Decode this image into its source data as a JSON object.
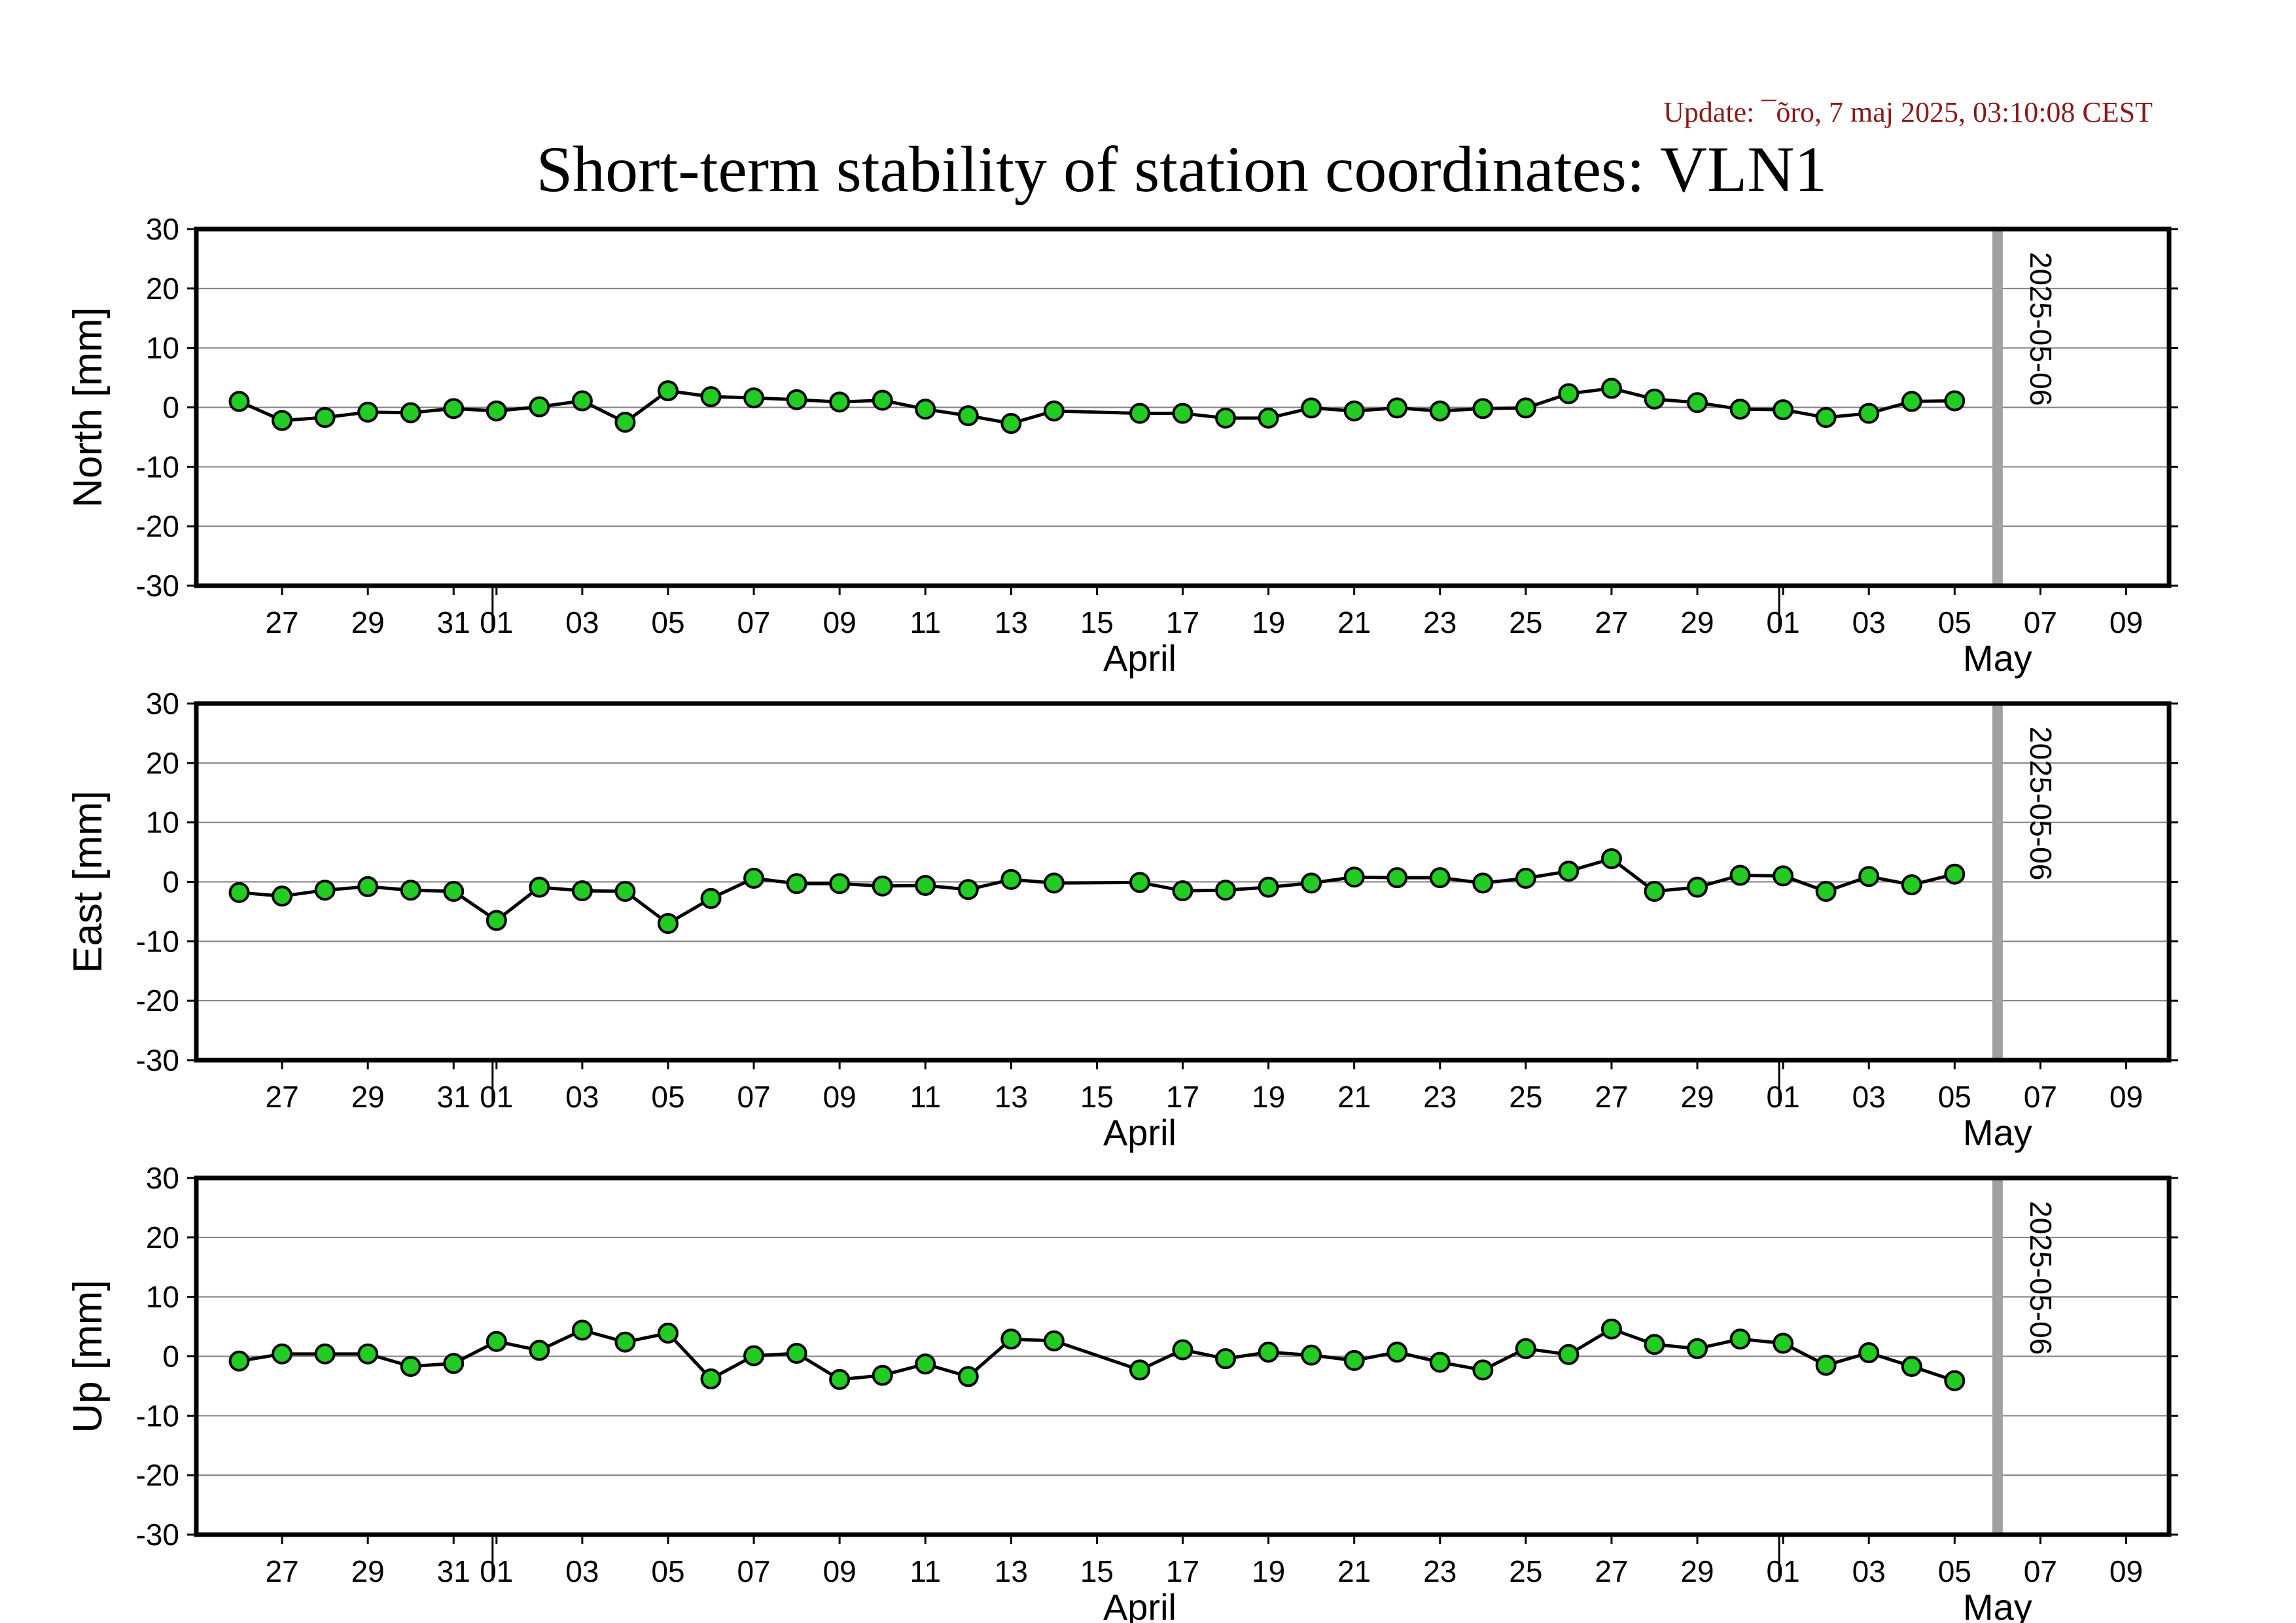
{
  "update_text": "Update: ¯õro, 7 maj 2025, 03:10:08 CEST",
  "title": "Short-term stability of station coordinates: VLN1",
  "colors": {
    "point": "#22cc22",
    "line": "#000000",
    "marker_line": "#a0a0a0",
    "grid": "#808080",
    "update": "#8b1a1a"
  },
  "x_axis": {
    "range": [
      "2025-03-25",
      "2025-05-10"
    ],
    "tick_dates": [
      "2025-03-27",
      "2025-03-29",
      "2025-03-31",
      "2025-04-01",
      "2025-04-03",
      "2025-04-05",
      "2025-04-07",
      "2025-04-09",
      "2025-04-11",
      "2025-04-13",
      "2025-04-15",
      "2025-04-17",
      "2025-04-19",
      "2025-04-21",
      "2025-04-23",
      "2025-04-25",
      "2025-04-27",
      "2025-04-29",
      "2025-05-01",
      "2025-05-03",
      "2025-05-05",
      "2025-05-07",
      "2025-05-09"
    ],
    "tick_labels": [
      "27",
      "29",
      "31",
      "01",
      "03",
      "05",
      "07",
      "09",
      "11",
      "13",
      "15",
      "17",
      "19",
      "21",
      "23",
      "25",
      "27",
      "29",
      "01",
      "03",
      "05",
      "07",
      "09"
    ],
    "month_boundaries": [
      "2025-04-01",
      "2025-05-01"
    ],
    "month_labels": [
      {
        "label": "April",
        "date": "2025-04-16"
      },
      {
        "label": "May",
        "date": "2025-05-06"
      }
    ]
  },
  "marker": {
    "date": "2025-05-06",
    "label": "2025-05-06"
  },
  "chart_data": [
    {
      "type": "line",
      "ylabel": "North [mm]",
      "ylim": [
        -30,
        30
      ],
      "yticks": [
        30,
        20,
        10,
        0,
        -10,
        -20,
        -30
      ],
      "grid": true,
      "x": [
        "2025-03-26",
        "2025-03-27",
        "2025-03-28",
        "2025-03-29",
        "2025-03-30",
        "2025-03-31",
        "2025-04-01",
        "2025-04-02",
        "2025-04-03",
        "2025-04-04",
        "2025-04-05",
        "2025-04-06",
        "2025-04-07",
        "2025-04-08",
        "2025-04-09",
        "2025-04-10",
        "2025-04-11",
        "2025-04-12",
        "2025-04-13",
        "2025-04-14",
        "2025-04-16",
        "2025-04-17",
        "2025-04-18",
        "2025-04-19",
        "2025-04-20",
        "2025-04-21",
        "2025-04-22",
        "2025-04-23",
        "2025-04-24",
        "2025-04-25",
        "2025-04-26",
        "2025-04-27",
        "2025-04-28",
        "2025-04-29",
        "2025-04-30",
        "2025-05-01",
        "2025-05-02",
        "2025-05-03",
        "2025-05-04",
        "2025-05-05"
      ],
      "y": [
        1.0,
        -2.2,
        -1.7,
        -0.8,
        -0.9,
        -0.2,
        -0.6,
        0.1,
        1.1,
        -2.5,
        2.8,
        1.8,
        1.6,
        1.3,
        0.9,
        1.2,
        -0.3,
        -1.4,
        -2.7,
        -0.6,
        -1.0,
        -1.0,
        -1.8,
        -1.8,
        -0.1,
        -0.6,
        -0.1,
        -0.6,
        -0.2,
        -0.1,
        2.3,
        3.2,
        1.4,
        0.8,
        -0.3,
        -0.4,
        -1.7,
        -1.0,
        1.0,
        1.1
      ]
    },
    {
      "type": "line",
      "ylabel": "East [mm]",
      "ylim": [
        -30,
        30
      ],
      "yticks": [
        30,
        20,
        10,
        0,
        -10,
        -20,
        -30
      ],
      "grid": true,
      "x": [
        "2025-03-26",
        "2025-03-27",
        "2025-03-28",
        "2025-03-29",
        "2025-03-30",
        "2025-03-31",
        "2025-04-01",
        "2025-04-02",
        "2025-04-03",
        "2025-04-04",
        "2025-04-05",
        "2025-04-06",
        "2025-04-07",
        "2025-04-08",
        "2025-04-09",
        "2025-04-10",
        "2025-04-11",
        "2025-04-12",
        "2025-04-13",
        "2025-04-14",
        "2025-04-16",
        "2025-04-17",
        "2025-04-18",
        "2025-04-19",
        "2025-04-20",
        "2025-04-21",
        "2025-04-22",
        "2025-04-23",
        "2025-04-24",
        "2025-04-25",
        "2025-04-26",
        "2025-04-27",
        "2025-04-28",
        "2025-04-29",
        "2025-04-30",
        "2025-05-01",
        "2025-05-02",
        "2025-05-03",
        "2025-05-04",
        "2025-05-05"
      ],
      "y": [
        -1.8,
        -2.4,
        -1.4,
        -0.8,
        -1.4,
        -1.6,
        -6.5,
        -0.9,
        -1.5,
        -1.6,
        -7.0,
        -2.8,
        0.6,
        -0.3,
        -0.3,
        -0.7,
        -0.6,
        -1.3,
        0.4,
        -0.2,
        -0.1,
        -1.5,
        -1.4,
        -0.9,
        -0.2,
        0.8,
        0.7,
        0.7,
        -0.2,
        0.6,
        1.8,
        3.9,
        -1.6,
        -0.9,
        1.1,
        1.0,
        -1.6,
        0.9,
        -0.5,
        1.3
      ]
    },
    {
      "type": "line",
      "ylabel": "Up [mm]",
      "ylim": [
        -30,
        30
      ],
      "yticks": [
        30,
        20,
        10,
        0,
        -10,
        -20,
        -30
      ],
      "grid": true,
      "x": [
        "2025-03-26",
        "2025-03-27",
        "2025-03-28",
        "2025-03-29",
        "2025-03-30",
        "2025-03-31",
        "2025-04-01",
        "2025-04-02",
        "2025-04-03",
        "2025-04-04",
        "2025-04-05",
        "2025-04-06",
        "2025-04-07",
        "2025-04-08",
        "2025-04-09",
        "2025-04-10",
        "2025-04-11",
        "2025-04-12",
        "2025-04-13",
        "2025-04-14",
        "2025-04-16",
        "2025-04-17",
        "2025-04-18",
        "2025-04-19",
        "2025-04-20",
        "2025-04-21",
        "2025-04-22",
        "2025-04-23",
        "2025-04-24",
        "2025-04-25",
        "2025-04-26",
        "2025-04-27",
        "2025-04-28",
        "2025-04-29",
        "2025-04-30",
        "2025-05-01",
        "2025-05-02",
        "2025-05-03",
        "2025-05-04",
        "2025-05-05"
      ],
      "y": [
        -0.8,
        0.4,
        0.4,
        0.4,
        -1.7,
        -1.2,
        2.5,
        1.0,
        4.4,
        2.4,
        3.9,
        -3.8,
        0.1,
        0.5,
        -3.9,
        -3.2,
        -1.3,
        -3.4,
        2.9,
        2.6,
        -2.3,
        1.1,
        -0.4,
        0.7,
        0.2,
        -0.7,
        0.7,
        -1.0,
        -2.3,
        1.3,
        0.3,
        4.6,
        2.0,
        1.3,
        2.9,
        2.2,
        -1.5,
        0.6,
        -1.7,
        -4.1
      ]
    }
  ]
}
